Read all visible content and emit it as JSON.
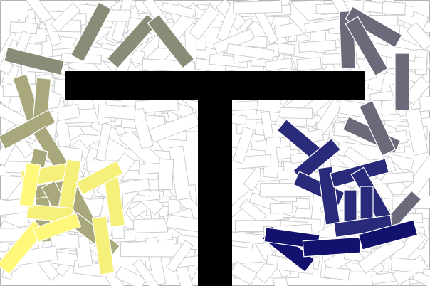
{
  "colors": {
    "background": "#ffffff",
    "outline": "#c8c8c8",
    "letter": "#000000",
    "olive": "#8a8c78",
    "khaki": "#a8a87c",
    "yellow": "#f5f07a",
    "bright_yellow": "#fff87a",
    "slate": "#6a6a7a",
    "navy": "#2a2a7a",
    "deep_navy": "#12126e"
  },
  "letter_glyph": "T"
}
